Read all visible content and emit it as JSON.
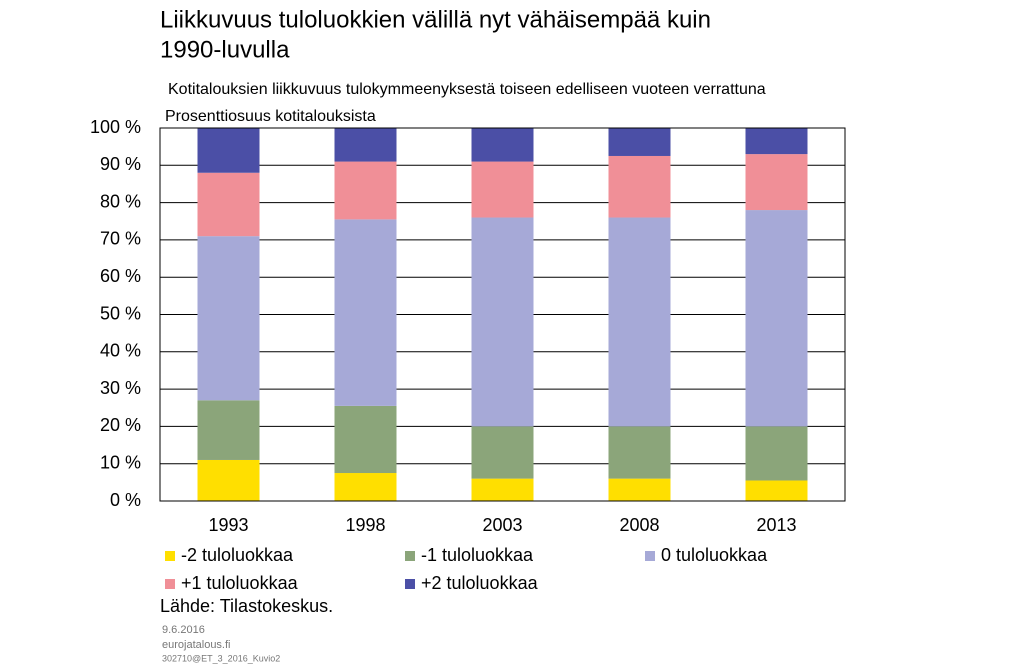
{
  "chart_data": {
    "type": "stacked-bar",
    "title": [
      "Liikkuvuus tuloluokkien välillä nyt vähäisempää kuin",
      "1990-luvulla"
    ],
    "subtitle": "Kotitalouksien liikkuvuus tulokymmeenyksestä  toiseen edelliseen vuoteen verrattuna",
    "ylabel": "Prosenttiosuus kotitalouksista",
    "categories": [
      "1993",
      "1998",
      "2003",
      "2008",
      "2013"
    ],
    "series": [
      {
        "name": "-2 tuloluokkaa",
        "color": "#ffdf00",
        "values": [
          11,
          7.5,
          6,
          6,
          5.5
        ]
      },
      {
        "name": "-1 tuloluokkaa",
        "color": "#8ba57a",
        "values": [
          16,
          18,
          14,
          14,
          14.5
        ]
      },
      {
        "name": "0 tuloluokkaa",
        "color": "#a6a9d7",
        "values": [
          44,
          50,
          56,
          56,
          58
        ]
      },
      {
        "name": "+1 tuloluokkaa",
        "color": "#f08f97",
        "values": [
          17,
          15.5,
          15,
          16.5,
          15
        ]
      },
      {
        "name": "+2 tuloluokkaa",
        "color": "#4b4fa6",
        "values": [
          12,
          9,
          9,
          7.5,
          7
        ]
      }
    ],
    "ylim": [
      0,
      100
    ],
    "yticks": [
      {
        "value": 0,
        "label": "0 %"
      },
      {
        "value": 10,
        "label": "10 %"
      },
      {
        "value": 20,
        "label": "20 %"
      },
      {
        "value": 30,
        "label": "30 %"
      },
      {
        "value": 40,
        "label": "40 %"
      },
      {
        "value": 50,
        "label": "50 %"
      },
      {
        "value": 60,
        "label": "60 %"
      },
      {
        "value": 70,
        "label": "70 %"
      },
      {
        "value": 80,
        "label": "80 %"
      },
      {
        "value": 90,
        "label": "90 %"
      },
      {
        "value": 100,
        "label": "100 %"
      }
    ],
    "grid": true,
    "source": "Lähde:  Tilastokeskus.",
    "footnotes": [
      "9.6.2016",
      "eurojatalous.fi",
      "302710@ET_3_2016_Kuvio2"
    ]
  }
}
